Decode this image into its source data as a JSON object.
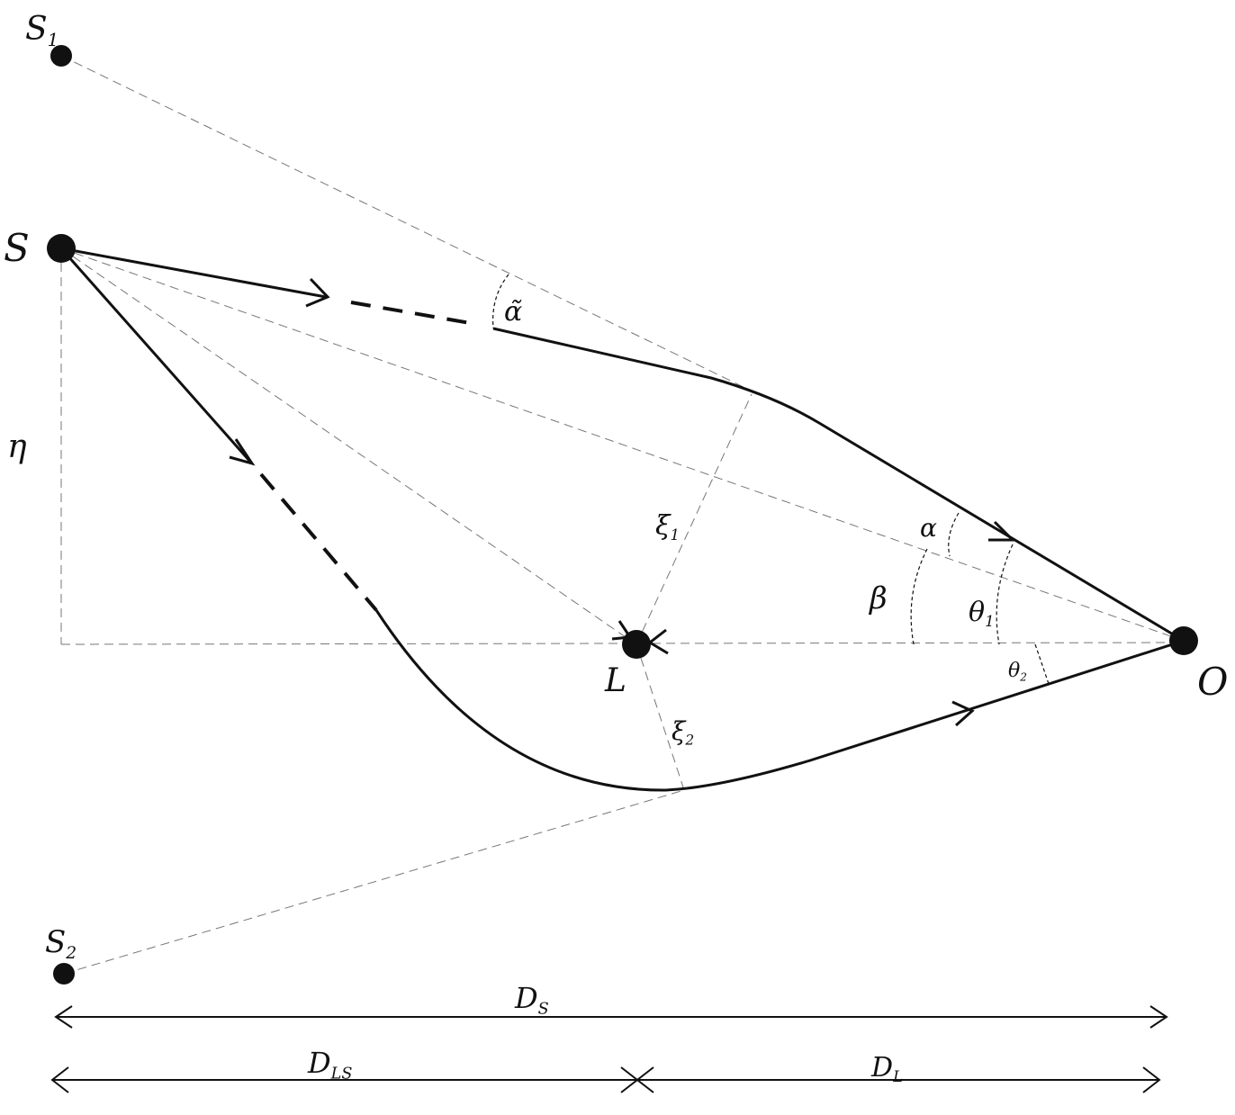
{
  "nodes": [
    {
      "label": "S",
      "sub": "1"
    },
    {
      "label": "S"
    },
    {
      "label": "S",
      "sub": "2"
    },
    {
      "label": "L"
    },
    {
      "label": "O"
    }
  ],
  "angles": [
    {
      "label": "α̃"
    },
    {
      "label": "α"
    },
    {
      "label": "β"
    },
    {
      "label": "θ",
      "sub": "1"
    },
    {
      "label": "θ",
      "sub": "2"
    }
  ],
  "distances": [
    {
      "label": "η"
    },
    {
      "label": "ξ",
      "sub": "1"
    },
    {
      "label": "ξ",
      "sub": "2"
    },
    {
      "label": "D",
      "sub": "S"
    },
    {
      "label": "D",
      "sub": "LS"
    },
    {
      "label": "D",
      "sub": "L"
    }
  ]
}
